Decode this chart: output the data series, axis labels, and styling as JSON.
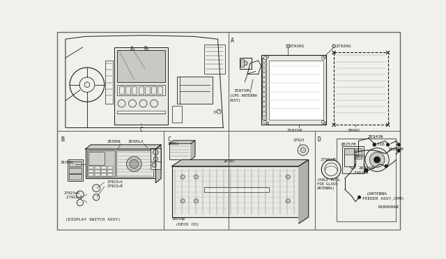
{
  "bg_color": "#f0f0ec",
  "line_color": "#1a1a1a",
  "border_color": "#666666",
  "white": "#ffffff",
  "light_gray": "#e8e8e4",
  "mid_gray": "#c8c8c4"
}
